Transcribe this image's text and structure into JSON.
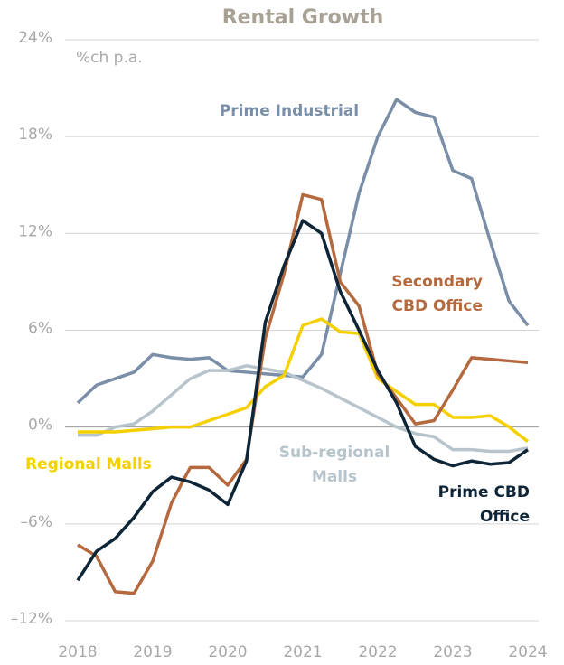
{
  "chart_data": {
    "type": "line",
    "title": "Rental Growth",
    "y_axis_label": "%ch p.a.",
    "x": [
      2018,
      2018.25,
      2018.5,
      2018.75,
      2019,
      2019.25,
      2019.5,
      2019.75,
      2020,
      2020.25,
      2020.5,
      2020.75,
      2021,
      2021.25,
      2021.5,
      2021.75,
      2022,
      2022.25,
      2022.5,
      2022.75,
      2023,
      2023.25,
      2023.5,
      2023.75,
      2024
    ],
    "xlim": [
      2018,
      2024
    ],
    "xticks": [
      2018,
      2019,
      2020,
      2021,
      2022,
      2023,
      2024
    ],
    "ylim": [
      -12,
      24
    ],
    "yticks": [
      {
        "value": -12,
        "label": "–12%"
      },
      {
        "value": -6,
        "label": "–6%"
      },
      {
        "value": 0,
        "label": "0%"
      },
      {
        "value": 6,
        "label": "6%"
      },
      {
        "value": 12,
        "label": "12%"
      },
      {
        "value": 18,
        "label": "18%"
      },
      {
        "value": 24,
        "label": "24%"
      }
    ],
    "grid": true,
    "series": [
      {
        "name": "Prime Industrial",
        "color": "#7a8ea8",
        "values": [
          1.5,
          2.6,
          3.0,
          3.4,
          4.5,
          4.3,
          4.2,
          4.3,
          3.5,
          3.4,
          3.3,
          3.2,
          3.1,
          4.5,
          9.5,
          14.5,
          18,
          20.3,
          19.5,
          19.2,
          15.9,
          15.4,
          11.5,
          7.8,
          6.3
        ]
      },
      {
        "name": "Sub-regional Malls",
        "color": "#b7c4cc",
        "values": [
          -0.5,
          -0.5,
          0,
          0.2,
          1.0,
          2.0,
          3.0,
          3.5,
          3.5,
          3.8,
          3.6,
          3.4,
          2.9,
          2.4,
          1.8,
          1.2,
          0.6,
          0.0,
          -0.4,
          -0.6,
          -1.4,
          -1.4,
          -1.5,
          -1.5,
          -1.3
        ]
      },
      {
        "name": "Regional Malls",
        "color": "#f5d000",
        "values": [
          -0.3,
          -0.3,
          -0.3,
          -0.2,
          -0.1,
          0,
          0,
          0.4,
          0.8,
          1.2,
          2.5,
          3.2,
          6.3,
          6.7,
          5.9,
          5.8,
          3.0,
          2.2,
          1.4,
          1.4,
          0.6,
          0.6,
          0.7,
          0.0,
          -0.9
        ]
      },
      {
        "name": "Secondary CBD Office",
        "color": "#b5693e",
        "values": [
          -7.3,
          -8.0,
          -10.2,
          -10.3,
          -8.3,
          -4.7,
          -2.5,
          -2.5,
          -3.6,
          -2.0,
          5.5,
          9.5,
          14.4,
          14.1,
          9.0,
          7.5,
          3.3,
          1.8,
          0.2,
          0.4,
          2.3,
          4.3,
          4.2,
          4.1,
          4.0
        ]
      },
      {
        "name": "Prime CBD Office",
        "color": "#0d2536",
        "values": [
          -9.5,
          -7.7,
          -6.9,
          -5.6,
          -4.0,
          -3.1,
          -3.4,
          -3.9,
          -4.8,
          -2.1,
          6.5,
          10,
          12.8,
          12.0,
          8.4,
          6.0,
          3.5,
          1.5,
          -1.2,
          -2.0,
          -2.4,
          -2.1,
          -2.3,
          -2.2,
          -1.4
        ]
      }
    ]
  }
}
